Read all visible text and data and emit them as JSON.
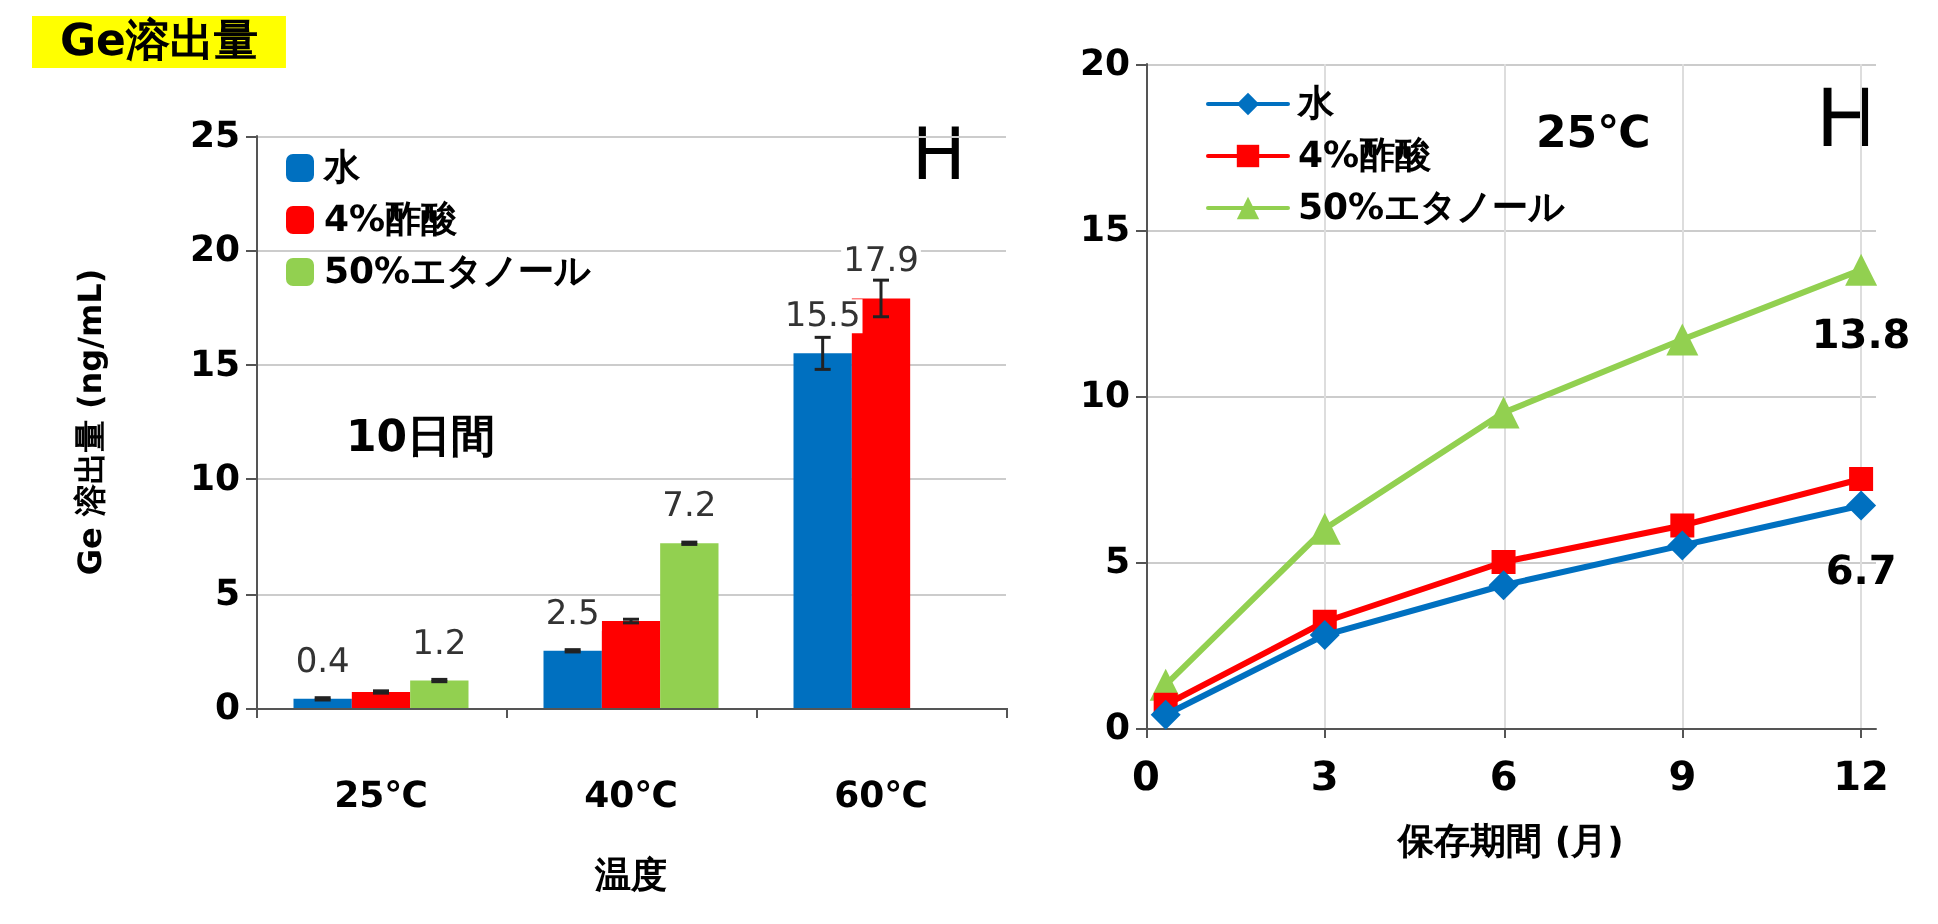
{
  "chart_data": [
    {
      "type": "bar",
      "title": "Ge溶出量",
      "ylabel": "Ge 溶出量 (ng/mL)",
      "xlabel": "温度",
      "categories": [
        "25℃",
        "40℃",
        "60℃"
      ],
      "series": [
        {
          "name": "水",
          "color": "#0070c0",
          "values": [
            0.4,
            2.5,
            15.5
          ],
          "errors": [
            0.05,
            0.05,
            0.7
          ],
          "value_labels": [
            "0.4",
            "2.5",
            "15.5"
          ]
        },
        {
          "name": "4%酢酸",
          "color": "#ff0000",
          "values": [
            0.7,
            3.8,
            17.9
          ],
          "errors": [
            0.05,
            0.08,
            0.8
          ],
          "value_labels": [
            null,
            null,
            "17.9"
          ]
        },
        {
          "name": "50%エタノール",
          "color": "#92d050",
          "values": [
            1.2,
            7.2,
            null
          ],
          "errors": [
            0.05,
            0.05,
            null
          ],
          "value_labels": [
            "1.2",
            "7.2",
            null
          ]
        }
      ],
      "ylim": [
        0,
        25
      ],
      "yticks": [
        0,
        5,
        10,
        15,
        20,
        25
      ],
      "grid": "y",
      "legend": "top left",
      "annotations": [
        "H",
        "10日間"
      ]
    },
    {
      "type": "line",
      "xlabel": "保存期間 (月)",
      "x": [
        0.33,
        3,
        6,
        9,
        12
      ],
      "series": [
        {
          "name": "水",
          "color": "#0070c0",
          "values": [
            0.4,
            2.8,
            4.3,
            5.5,
            6.7
          ],
          "marker": "diamond"
        },
        {
          "name": "4%酢酸",
          "color": "#ff0000",
          "values": [
            0.7,
            3.2,
            5.0,
            6.1,
            7.5
          ],
          "marker": "square"
        },
        {
          "name": "50%エタノール",
          "color": "#92d050",
          "values": [
            1.3,
            6.0,
            9.5,
            11.7,
            13.8
          ],
          "marker": "triangle"
        }
      ],
      "xlim": [
        0,
        12.25
      ],
      "xticks": [
        0,
        3,
        6,
        9,
        12
      ],
      "ylim": [
        0,
        20
      ],
      "yticks": [
        0,
        5,
        10,
        15,
        20
      ],
      "grid": true,
      "legend": "top left",
      "line_style": "solid",
      "annotations": [
        "25℃",
        "H",
        {
          "text": "13.8",
          "x": 12,
          "y": 13.8
        },
        {
          "text": "6.7",
          "x": 12,
          "y": 6.7
        }
      ]
    }
  ]
}
